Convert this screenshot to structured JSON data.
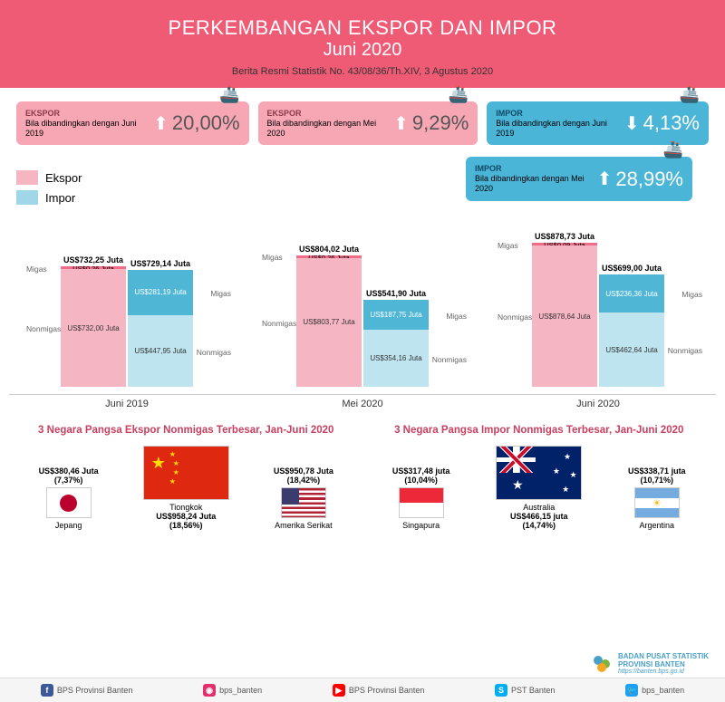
{
  "header": {
    "title1": "PERKEMBANGAN EKSPOR DAN IMPOR",
    "title2": "Juni 2020",
    "subtitle": "Berita Resmi Statistik No. 43/08/36/Th.XIV, 3 Agustus 2020",
    "bg_color": "#ef5b75"
  },
  "stats": [
    {
      "type": "EKSPOR",
      "desc": "Bila dibandingkan dengan Juni 2019",
      "arrow": "up",
      "value": "20,00%",
      "bg": "#f7a6b4",
      "fg": "#8a3a4a"
    },
    {
      "type": "EKSPOR",
      "desc": "Bila dibandingkan dengan Mei 2020",
      "arrow": "up",
      "value": "9,29%",
      "bg": "#f7a6b4",
      "fg": "#8a3a4a"
    },
    {
      "type": "IMPOR",
      "desc": "Bila dibandingkan dengan Juni 2019",
      "arrow": "down",
      "value": "4,13%",
      "bg": "#4bb5d8",
      "fg": "#0d4a66"
    }
  ],
  "stat_extra": {
    "type": "IMPOR",
    "desc": "Bila dibandingkan dengan Mei 2020",
    "arrow": "up",
    "value": "28,99%",
    "bg": "#4bb5d8",
    "fg": "#0d4a66"
  },
  "legend": {
    "ekspor": {
      "label": "Ekspor",
      "color": "#f5b5c3"
    },
    "impor": {
      "label": "Impor",
      "color": "#9fd7e8"
    }
  },
  "colors": {
    "ekspor_migas": "#ef6d88",
    "ekspor_non": "#f5b5c3",
    "impor_migas": "#4fb6d6",
    "impor_non": "#bde4ef"
  },
  "chart": {
    "max_value": 900,
    "periods": [
      {
        "label": "Juni 2019",
        "ekspor": {
          "total": "US$732,25 Juta",
          "migas": {
            "v": 0.26,
            "lbl": "US$0,26 Juta"
          },
          "non": {
            "v": 732.0,
            "lbl": "US$732,00 Juta"
          }
        },
        "impor": {
          "total": "US$729,14 Juta",
          "migas": {
            "v": 281.19,
            "lbl": "US$281,19 Juta"
          },
          "non": {
            "v": 447.95,
            "lbl": "US$447,95 Juta"
          }
        }
      },
      {
        "label": "Mei 2020",
        "ekspor": {
          "total": "US$804,02 Juta",
          "migas": {
            "v": 0.26,
            "lbl": "US$0,26 Juta"
          },
          "non": {
            "v": 803.77,
            "lbl": "US$803,77 Juta"
          }
        },
        "impor": {
          "total": "US$541,90 Juta",
          "migas": {
            "v": 187.75,
            "lbl": "US$187,75 Juta"
          },
          "non": {
            "v": 354.16,
            "lbl": "US$354,16 Juta"
          }
        }
      },
      {
        "label": "Juni 2020",
        "ekspor": {
          "total": "US$878,73 Juta",
          "migas": {
            "v": 0.09,
            "lbl": "US$0,09 Juta"
          },
          "non": {
            "v": 878.64,
            "lbl": "US$878,64 Juta"
          }
        },
        "impor": {
          "total": "US$699,00 Juta",
          "migas": {
            "v": 236.36,
            "lbl": "US$236,36 Juta"
          },
          "non": {
            "v": 462.64,
            "lbl": "US$462,64 Juta"
          }
        }
      }
    ],
    "side_labels": {
      "migas": "Migas",
      "nonmigas": "Nonmigas"
    }
  },
  "bottom": {
    "ekspor": {
      "title": "3 Negara Pangsa Ekspor Nonmigas Terbesar, Jan-Juni 2020",
      "countries": [
        {
          "name": "Jepang",
          "value": "US$380,46 Juta",
          "pct": "(7,37%)",
          "flag": "jp",
          "size": "sm",
          "pos": "top"
        },
        {
          "name": "Tiongkok",
          "value": "US$958,24 Juta",
          "pct": "(18,56%)",
          "flag": "cn",
          "size": "lg",
          "pos": "bottom"
        },
        {
          "name": "Amerika Serikat",
          "value": "US$950,78 Juta",
          "pct": "(18,42%)",
          "flag": "us",
          "size": "sm",
          "pos": "top"
        }
      ]
    },
    "impor": {
      "title": "3 Negara Pangsa Impor Nonmigas Terbesar, Jan-Juni 2020",
      "countries": [
        {
          "name": "Singapura",
          "value": "US$317,48 juta",
          "pct": "(10,04%)",
          "flag": "sg",
          "size": "sm",
          "pos": "top"
        },
        {
          "name": "Australia",
          "value": "US$466,15 juta",
          "pct": "(14,74%)",
          "flag": "au",
          "size": "lg",
          "pos": "bottom"
        },
        {
          "name": "Argentina",
          "value": "US$338,71 juta",
          "pct": "(10,71%)",
          "flag": "ar",
          "size": "sm",
          "pos": "top"
        }
      ]
    }
  },
  "org": {
    "name": "BADAN PUSAT STATISTIK",
    "sub": "PROVINSI BANTEN",
    "url": "https://banten.bps.go.id"
  },
  "footer": [
    {
      "icon": "f",
      "color": "#3b5998",
      "label": "BPS Provinsi Banten"
    },
    {
      "icon": "◉",
      "color": "#e1306c",
      "label": "bps_banten"
    },
    {
      "icon": "▶",
      "color": "#ff0000",
      "label": "BPS Provinsi Banten"
    },
    {
      "icon": "S",
      "color": "#00aff0",
      "label": "PST Banten"
    },
    {
      "icon": "🐦",
      "color": "#1da1f2",
      "label": "bps_banten"
    }
  ]
}
